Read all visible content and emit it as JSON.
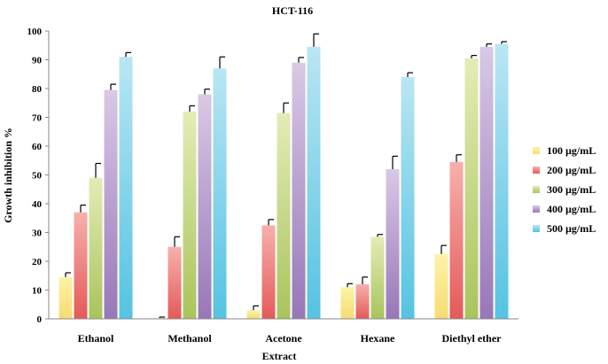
{
  "chart_data": {
    "type": "bar",
    "title": "HCT-116",
    "xlabel": "Extract",
    "ylabel": "Growth inhibition %",
    "ylim": [
      0,
      100
    ],
    "yticks": [
      0,
      10,
      20,
      30,
      40,
      50,
      60,
      70,
      80,
      90,
      100
    ],
    "categories": [
      "Ethanol",
      "Methanol",
      "Acetone",
      "Hexane",
      "Diethyl ether"
    ],
    "series": [
      {
        "name": "100 µg/mL",
        "color_light": "#fdf3a8",
        "color_dark": "#f5dc72",
        "values": [
          14.5,
          0.3,
          3,
          11,
          22.5
        ],
        "errors": [
          1.5,
          0.3,
          1.5,
          1.2,
          3
        ]
      },
      {
        "name": "200 µg/mL",
        "color_light": "#f7b0ac",
        "color_dark": "#e45a5a",
        "values": [
          37,
          25,
          32.5,
          12,
          54.5
        ],
        "errors": [
          2.5,
          3.5,
          2,
          2.5,
          2.5
        ]
      },
      {
        "name": "300 µg/mL",
        "color_light": "#e3ecb6",
        "color_dark": "#a9c45c",
        "values": [
          49,
          72,
          71.5,
          28.5,
          90.5
        ],
        "errors": [
          5,
          2,
          3.5,
          0.8,
          1
        ]
      },
      {
        "name": "400 µg/mL",
        "color_light": "#d8c9e5",
        "color_dark": "#9877b8",
        "values": [
          79.5,
          78,
          89,
          52,
          94.5
        ],
        "errors": [
          2,
          1.8,
          1.8,
          4.5,
          1
        ]
      },
      {
        "name": "500 µg/mL",
        "color_light": "#b9e6f3",
        "color_dark": "#55c3e2",
        "values": [
          91,
          87,
          94.5,
          84,
          95.5
        ],
        "errors": [
          1.5,
          4,
          4.5,
          1.5,
          0.8
        ]
      }
    ],
    "legend_position": "right",
    "grid": false
  }
}
